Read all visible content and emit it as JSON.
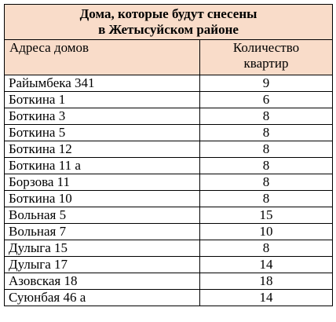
{
  "table": {
    "title_line1": "Дома, которые будут снесены",
    "title_line2": "в Жетысуйском районе",
    "header_address": "Адреса домов",
    "header_count_line1": "Количество",
    "header_count_line2": "квартир",
    "rows": [
      {
        "address": "Райымбека 341",
        "apartments": "9"
      },
      {
        "address": "Боткина 1",
        "apartments": "6"
      },
      {
        "address": "Боткина 3",
        "apartments": "8"
      },
      {
        "address": "Боткина 5",
        "apartments": "8"
      },
      {
        "address": "Боткина 12",
        "apartments": "8"
      },
      {
        "address": "Боткина 11 а",
        "apartments": "8"
      },
      {
        "address": "Борзова 11",
        "apartments": "8"
      },
      {
        "address": "Боткина 10",
        "apartments": "8"
      },
      {
        "address": "Вольная 5",
        "apartments": "15"
      },
      {
        "address": "Вольная 7",
        "apartments": "10"
      },
      {
        "address": "Дулыга 15",
        "apartments": "8"
      },
      {
        "address": "Дулыга 17",
        "apartments": "14"
      },
      {
        "address": "Азовская 18",
        "apartments": "18"
      },
      {
        "address": "Суюнбая 46 а",
        "apartments": "14"
      }
    ]
  },
  "colors": {
    "header_background": "#f9dcc9",
    "border": "#000000",
    "text": "#000000"
  }
}
